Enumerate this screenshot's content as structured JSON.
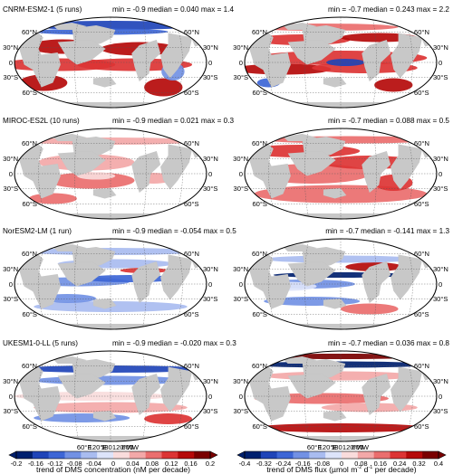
{
  "panels": [
    {
      "label": "CNRM-ESM2-1 (5 runs)",
      "left_stats": "min = -0.9 median = 0.040 max = 1.4",
      "right_stats": "min = -0.7 median = 0.243 max = 2.2"
    },
    {
      "label": "MIROC-ES2L (10 runs)",
      "left_stats": "min = -0.9 median = 0.021 max = 0.3",
      "right_stats": "min = -0.7 median = 0.088 max = 0.5"
    },
    {
      "label": "NorESM2-LM (1 run)",
      "left_stats": "min = -0.9 median = -0.054 max = 0.5",
      "right_stats": "min = -0.7 median = -0.141 max = 1.3"
    },
    {
      "label": "UKESM1-0-LL (5 runs)",
      "left_stats": "min = -0.9 median = -0.020 max = 0.3",
      "right_stats": "min = -0.7 median = 0.036 max = 0.8"
    }
  ],
  "lat_labels": [
    "60°N",
    "30°N",
    "0",
    "30°S",
    "60°S"
  ],
  "lon_labels": [
    "60°E",
    "120°E",
    "180",
    "120°W",
    "60°W",
    "0"
  ],
  "colorbar_left": {
    "ticks": [
      "-0.2",
      "-0.16",
      "-0.12",
      "-0.08",
      "-0.04",
      "0",
      "0.04",
      "0.08",
      "0.12",
      "0.16",
      "0.2"
    ],
    "title": "trend of DMS concentration (nM per decade)"
  },
  "colorbar_right": {
    "ticks": [
      "-0.4",
      "-0.32",
      "-0.24",
      "-0.16",
      "-0.08",
      "0",
      "0.08",
      "0.16",
      "0.24",
      "0.32",
      "0.4"
    ],
    "title_pre": "trend of DMS flux (µmol m",
    "sup1": "-2",
    "title_mid": " d",
    "sup2": "-1",
    "title_post": " per decade)"
  },
  "colors": {
    "land": "#c8c8c8",
    "neutral_ocean": "#ffffff",
    "scale": [
      "#00206e",
      "#1f44b8",
      "#3d66d6",
      "#7291e4",
      "#a9bcf0",
      "#dde4fa",
      "#f9dcdc",
      "#f3a8a8",
      "#ea6e6e",
      "#dc3434",
      "#b50a0a",
      "#7a0000"
    ]
  }
}
